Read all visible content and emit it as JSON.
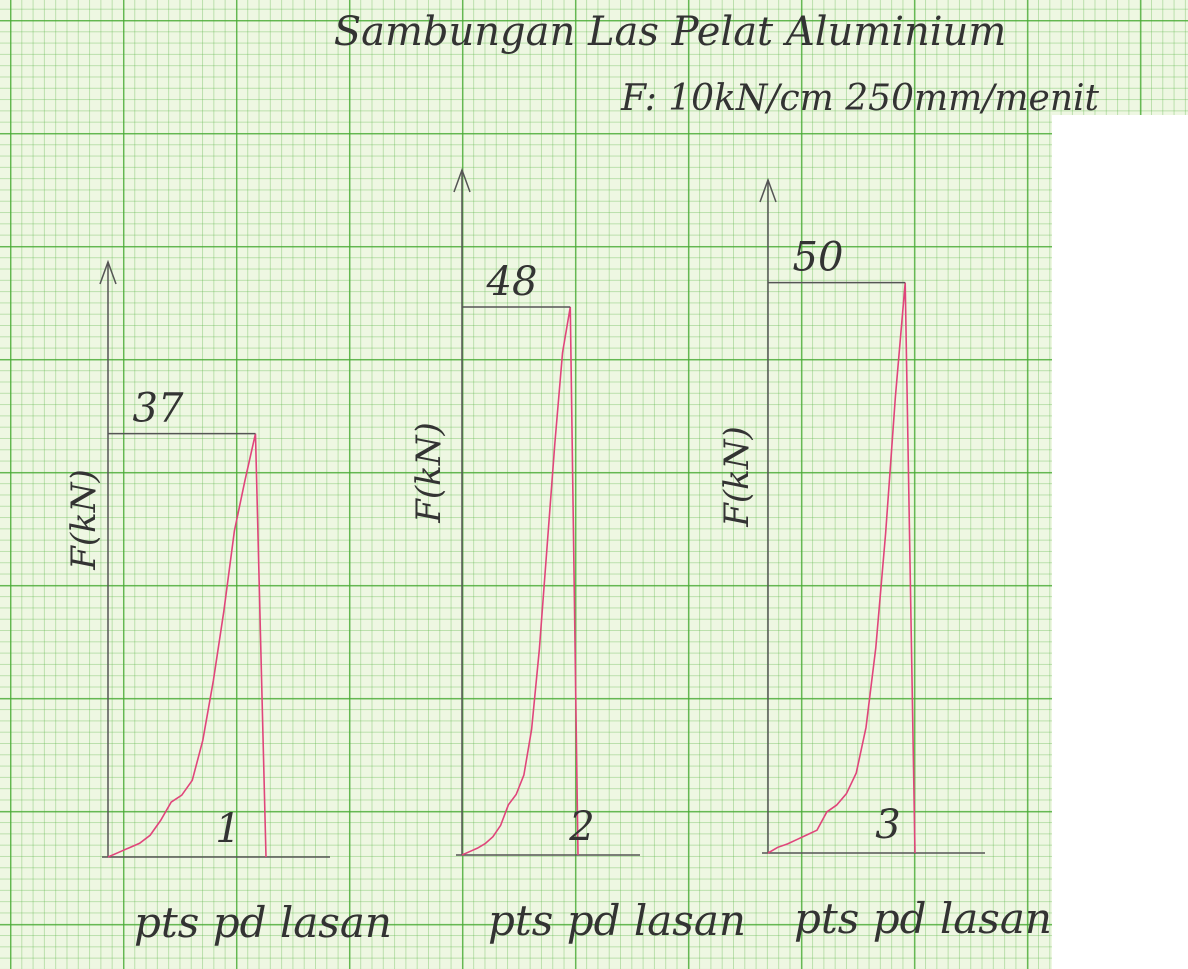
{
  "title": "Sambungan Las Pelat Aluminium",
  "subtitle": "F: 10kN/cm 250mm/menit",
  "chart_data": [
    {
      "type": "line",
      "ylabel": "F(kN)",
      "xlabel": "pts pd lasan",
      "label": "1",
      "peak": 37,
      "ylim": [
        0,
        52
      ],
      "color": "#e0457b",
      "categories": [
        null,
        null,
        null,
        null,
        null,
        null,
        null,
        null,
        null,
        null,
        null,
        null,
        null,
        null,
        null,
        null
      ],
      "values": [
        0,
        0.4,
        0.8,
        1.2,
        1.9,
        3.2,
        4.8,
        5.4,
        6.7,
        10.2,
        15.4,
        21.5,
        28.5,
        32.9,
        37,
        0
      ]
    },
    {
      "type": "line",
      "ylabel": "F(kN)",
      "xlabel": "pts pd lasan",
      "label": "2",
      "peak": 48,
      "ylim": [
        0,
        60
      ],
      "color": "#e0457b",
      "categories": [
        null,
        null,
        null,
        null,
        null,
        null,
        null,
        null,
        null,
        null,
        null,
        null,
        null,
        null,
        null,
        null
      ],
      "values": [
        0,
        0.3,
        0.6,
        1,
        1.6,
        2.6,
        4.4,
        5.3,
        7,
        11,
        18,
        27,
        36,
        44,
        48,
        0
      ]
    },
    {
      "type": "line",
      "ylabel": "F(kN)",
      "xlabel": "pts pd lasan",
      "label": "3",
      "peak": 50,
      "ylim": [
        0,
        59
      ],
      "color": "#e0457b",
      "categories": [
        null,
        null,
        null,
        null,
        null,
        null,
        null,
        null,
        null,
        null,
        null,
        null,
        null,
        null,
        null,
        null
      ],
      "values": [
        0,
        0.5,
        0.8,
        1.2,
        1.6,
        2,
        3.6,
        4.2,
        5.2,
        7,
        11,
        18,
        28,
        40,
        50,
        0
      ]
    }
  ]
}
